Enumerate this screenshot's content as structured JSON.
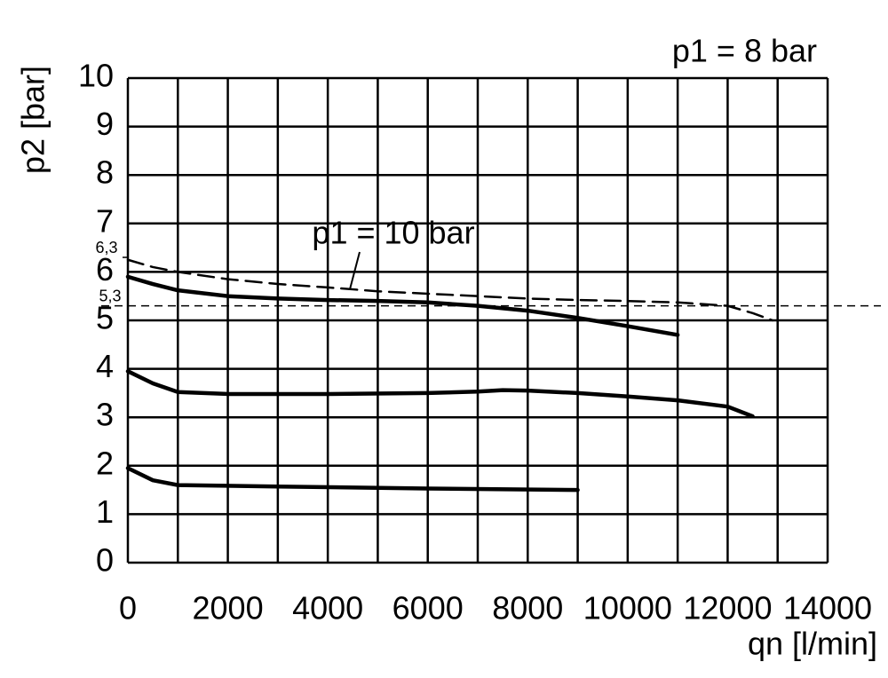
{
  "chart_data": {
    "type": "line",
    "xlabel": "qn [l/min]",
    "ylabel": "p2 [bar]",
    "xlim": [
      0,
      14000
    ],
    "xticks": [
      0,
      2000,
      4000,
      6000,
      8000,
      10000,
      12000,
      14000
    ],
    "xminorticks": [
      1000,
      3000,
      5000,
      7000,
      9000,
      11000,
      13000
    ],
    "ylim": [
      0,
      10
    ],
    "yticks": [
      0,
      1,
      2,
      3,
      4,
      5,
      6,
      7,
      8,
      9,
      10
    ],
    "grid": true,
    "annotations": [
      {
        "text": "p1 = 8 bar"
      },
      {
        "text": "p1 = 10 bar"
      }
    ],
    "reference_lines": [
      {
        "value": 5.3,
        "label": "5,3",
        "dashed": true
      }
    ],
    "y_markers": [
      {
        "value": 6.3,
        "label": "6,3"
      }
    ],
    "series": [
      {
        "color": "#000000",
        "dashed": false,
        "x": [
          0,
          500,
          1000,
          2000,
          3000,
          4000,
          5000,
          6000,
          7000,
          8000,
          9000,
          10000,
          11000
        ],
        "values": [
          5.9,
          5.75,
          5.62,
          5.5,
          5.45,
          5.42,
          5.4,
          5.37,
          5.3,
          5.2,
          5.05,
          4.88,
          4.7
        ]
      },
      {
        "color": "#000000",
        "dashed": false,
        "x": [
          0,
          500,
          1000,
          2000,
          4000,
          6000,
          7000,
          7500,
          8000,
          9000,
          10000,
          11000,
          12000,
          12500
        ],
        "values": [
          3.95,
          3.7,
          3.52,
          3.48,
          3.48,
          3.5,
          3.53,
          3.56,
          3.55,
          3.5,
          3.43,
          3.35,
          3.22,
          3.02
        ]
      },
      {
        "color": "#000000",
        "dashed": false,
        "x": [
          0,
          500,
          1000,
          3000,
          6000,
          9000
        ],
        "values": [
          1.95,
          1.7,
          1.6,
          1.57,
          1.53,
          1.5
        ]
      },
      {
        "color": "#000000",
        "dashed": true,
        "x": [
          0,
          500,
          1000,
          2000,
          3000,
          4000,
          5000,
          6000,
          7000,
          8000,
          9000,
          10000,
          11000,
          12000,
          12500,
          12900
        ],
        "values": [
          6.25,
          6.1,
          6.0,
          5.85,
          5.75,
          5.68,
          5.6,
          5.55,
          5.5,
          5.45,
          5.42,
          5.4,
          5.37,
          5.3,
          5.15,
          5.0
        ]
      }
    ]
  }
}
